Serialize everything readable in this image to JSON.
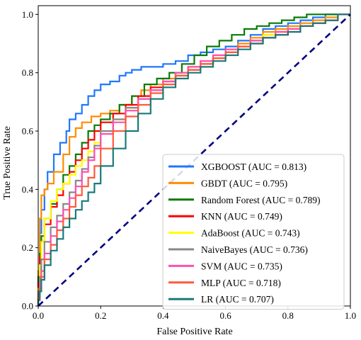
{
  "chart_data": {
    "type": "line",
    "title": "",
    "xlabel": "False Positive Rate",
    "ylabel": "True Positive Rate",
    "xlim": [
      0,
      1
    ],
    "ylim": [
      0,
      1.03
    ],
    "xticks": [
      "0.0",
      "0.2",
      "0.4",
      "0.6",
      "0.8",
      "1.0"
    ],
    "yticks": [
      "0.0",
      "0.2",
      "0.4",
      "0.6",
      "0.8",
      "1.0"
    ],
    "grid": false,
    "legend_position": "lower-right",
    "diagonal": {
      "color": "#000080",
      "style": "dashed",
      "x": [
        0,
        1
      ],
      "y": [
        0,
        1
      ]
    },
    "series": [
      {
        "name": "XGBOOST (AUC = 0.813)",
        "color": "#1f77ff",
        "x": [
          0,
          0.005,
          0.01,
          0.02,
          0.03,
          0.05,
          0.07,
          0.09,
          0.1,
          0.12,
          0.14,
          0.16,
          0.18,
          0.2,
          0.23,
          0.26,
          0.28,
          0.3,
          0.33,
          0.36,
          0.4,
          0.44,
          0.48,
          0.52,
          0.56,
          0.6,
          0.64,
          0.68,
          0.72,
          0.76,
          0.8,
          0.84,
          0.88,
          0.92,
          0.96,
          1.0
        ],
        "y": [
          0,
          0.1,
          0.25,
          0.33,
          0.4,
          0.46,
          0.52,
          0.56,
          0.6,
          0.64,
          0.66,
          0.69,
          0.72,
          0.74,
          0.76,
          0.77,
          0.79,
          0.8,
          0.81,
          0.82,
          0.82,
          0.83,
          0.84,
          0.86,
          0.87,
          0.88,
          0.89,
          0.91,
          0.93,
          0.95,
          0.96,
          0.97,
          0.98,
          0.99,
          1.0,
          1.0
        ]
      },
      {
        "name": "GBDT (AUC = 0.795)",
        "color": "#ff8c00",
        "x": [
          0,
          0.005,
          0.01,
          0.02,
          0.03,
          0.05,
          0.08,
          0.1,
          0.12,
          0.14,
          0.17,
          0.2,
          0.23,
          0.26,
          0.3,
          0.33,
          0.36,
          0.4,
          0.44,
          0.48,
          0.52,
          0.56,
          0.6,
          0.64,
          0.68,
          0.72,
          0.76,
          0.8,
          0.84,
          0.88,
          0.92,
          0.96,
          1.0
        ],
        "y": [
          0,
          0.12,
          0.3,
          0.38,
          0.4,
          0.42,
          0.46,
          0.52,
          0.58,
          0.61,
          0.63,
          0.65,
          0.66,
          0.67,
          0.69,
          0.72,
          0.74,
          0.76,
          0.78,
          0.8,
          0.82,
          0.84,
          0.86,
          0.88,
          0.9,
          0.92,
          0.94,
          0.95,
          0.96,
          0.97,
          0.98,
          0.99,
          1.0
        ]
      },
      {
        "name": "Random Forest (AUC = 0.789)",
        "color": "#0a7a0a",
        "x": [
          0,
          0.005,
          0.01,
          0.02,
          0.04,
          0.06,
          0.08,
          0.1,
          0.12,
          0.14,
          0.16,
          0.18,
          0.2,
          0.23,
          0.26,
          0.3,
          0.34,
          0.38,
          0.42,
          0.46,
          0.5,
          0.54,
          0.58,
          0.62,
          0.66,
          0.7,
          0.74,
          0.78,
          0.82,
          0.86,
          0.9,
          0.94,
          1.0
        ],
        "y": [
          0,
          0.1,
          0.18,
          0.24,
          0.3,
          0.35,
          0.4,
          0.45,
          0.48,
          0.52,
          0.56,
          0.6,
          0.62,
          0.64,
          0.66,
          0.69,
          0.72,
          0.76,
          0.78,
          0.8,
          0.83,
          0.86,
          0.89,
          0.91,
          0.93,
          0.95,
          0.96,
          0.97,
          0.98,
          0.99,
          1.0,
          1.0,
          1.0
        ]
      },
      {
        "name": "KNN (AUC = 0.749)",
        "color": "#ff0000",
        "x": [
          0,
          0.005,
          0.01,
          0.02,
          0.04,
          0.06,
          0.08,
          0.1,
          0.12,
          0.14,
          0.16,
          0.18,
          0.2,
          0.24,
          0.28,
          0.32,
          0.36,
          0.4,
          0.44,
          0.48,
          0.52,
          0.56,
          0.6,
          0.64,
          0.68,
          0.72,
          0.76,
          0.8,
          0.84,
          0.88,
          0.92,
          0.96,
          1.0
        ],
        "y": [
          0,
          0.08,
          0.17,
          0.22,
          0.28,
          0.34,
          0.38,
          0.42,
          0.46,
          0.5,
          0.54,
          0.57,
          0.6,
          0.63,
          0.66,
          0.69,
          0.72,
          0.75,
          0.77,
          0.79,
          0.81,
          0.83,
          0.85,
          0.87,
          0.89,
          0.91,
          0.93,
          0.94,
          0.95,
          0.96,
          0.97,
          0.98,
          1.0
        ]
      },
      {
        "name": "AdaBoost (AUC = 0.743)",
        "color": "#ffff00",
        "x": [
          0,
          0.005,
          0.01,
          0.02,
          0.04,
          0.06,
          0.08,
          0.1,
          0.12,
          0.14,
          0.16,
          0.18,
          0.2,
          0.24,
          0.28,
          0.32,
          0.36,
          0.4,
          0.44,
          0.48,
          0.52,
          0.56,
          0.6,
          0.64,
          0.68,
          0.72,
          0.76,
          0.8,
          0.84,
          0.88,
          0.92,
          0.96,
          1.0
        ],
        "y": [
          0,
          0.06,
          0.14,
          0.22,
          0.3,
          0.36,
          0.4,
          0.42,
          0.45,
          0.48,
          0.5,
          0.53,
          0.56,
          0.6,
          0.64,
          0.68,
          0.71,
          0.74,
          0.76,
          0.79,
          0.81,
          0.83,
          0.85,
          0.87,
          0.89,
          0.91,
          0.93,
          0.94,
          0.95,
          0.96,
          0.97,
          0.98,
          1.0
        ]
      },
      {
        "name": "NaiveBayes (AUC = 0.736)",
        "color": "#888888",
        "x": [
          0,
          0.005,
          0.01,
          0.02,
          0.04,
          0.06,
          0.08,
          0.1,
          0.12,
          0.14,
          0.16,
          0.18,
          0.2,
          0.24,
          0.28,
          0.32,
          0.36,
          0.4,
          0.44,
          0.48,
          0.52,
          0.56,
          0.6,
          0.64,
          0.68,
          0.72,
          0.76,
          0.8,
          0.84,
          0.88,
          0.92,
          0.96,
          1.0
        ],
        "y": [
          0,
          0.05,
          0.1,
          0.16,
          0.22,
          0.27,
          0.31,
          0.35,
          0.39,
          0.43,
          0.47,
          0.51,
          0.55,
          0.6,
          0.64,
          0.68,
          0.71,
          0.74,
          0.77,
          0.79,
          0.81,
          0.83,
          0.85,
          0.87,
          0.89,
          0.91,
          0.92,
          0.93,
          0.95,
          0.96,
          0.97,
          0.98,
          1.0
        ]
      },
      {
        "name": "SVM (AUC = 0.735)",
        "color": "#ff4fb4",
        "x": [
          0,
          0.005,
          0.01,
          0.02,
          0.04,
          0.06,
          0.08,
          0.1,
          0.12,
          0.14,
          0.16,
          0.18,
          0.2,
          0.24,
          0.28,
          0.32,
          0.36,
          0.4,
          0.44,
          0.48,
          0.52,
          0.56,
          0.6,
          0.64,
          0.68,
          0.72,
          0.76,
          0.8,
          0.84,
          0.88,
          0.92,
          0.96,
          1.0
        ],
        "y": [
          0,
          0.03,
          0.07,
          0.12,
          0.18,
          0.24,
          0.29,
          0.33,
          0.37,
          0.41,
          0.46,
          0.5,
          0.54,
          0.59,
          0.63,
          0.67,
          0.71,
          0.74,
          0.77,
          0.8,
          0.82,
          0.84,
          0.86,
          0.88,
          0.89,
          0.91,
          0.92,
          0.94,
          0.95,
          0.96,
          0.97,
          0.98,
          1.0
        ]
      },
      {
        "name": "MLP (AUC = 0.718)",
        "color": "#ff5a3c",
        "x": [
          0,
          0.005,
          0.01,
          0.02,
          0.04,
          0.06,
          0.08,
          0.1,
          0.12,
          0.14,
          0.16,
          0.18,
          0.2,
          0.24,
          0.28,
          0.32,
          0.36,
          0.4,
          0.44,
          0.48,
          0.52,
          0.56,
          0.6,
          0.64,
          0.68,
          0.72,
          0.76,
          0.8,
          0.84,
          0.88,
          0.92,
          0.96,
          1.0
        ],
        "y": [
          0,
          0.03,
          0.06,
          0.1,
          0.16,
          0.21,
          0.26,
          0.3,
          0.34,
          0.38,
          0.41,
          0.44,
          0.48,
          0.54,
          0.6,
          0.65,
          0.69,
          0.73,
          0.76,
          0.79,
          0.81,
          0.83,
          0.85,
          0.87,
          0.89,
          0.9,
          0.92,
          0.93,
          0.94,
          0.96,
          0.97,
          0.98,
          1.0
        ]
      },
      {
        "name": "LR (AUC = 0.707)",
        "color": "#1a7a7a",
        "x": [
          0,
          0.005,
          0.01,
          0.02,
          0.04,
          0.06,
          0.08,
          0.1,
          0.12,
          0.14,
          0.16,
          0.18,
          0.2,
          0.24,
          0.28,
          0.32,
          0.36,
          0.4,
          0.44,
          0.48,
          0.52,
          0.56,
          0.6,
          0.64,
          0.68,
          0.72,
          0.76,
          0.8,
          0.84,
          0.88,
          0.92,
          0.96,
          1.0
        ],
        "y": [
          0,
          0.02,
          0.05,
          0.09,
          0.14,
          0.19,
          0.23,
          0.27,
          0.3,
          0.33,
          0.36,
          0.39,
          0.42,
          0.48,
          0.54,
          0.6,
          0.66,
          0.71,
          0.75,
          0.78,
          0.8,
          0.82,
          0.84,
          0.86,
          0.88,
          0.9,
          0.92,
          0.93,
          0.94,
          0.96,
          0.97,
          0.98,
          1.0
        ]
      }
    ]
  }
}
